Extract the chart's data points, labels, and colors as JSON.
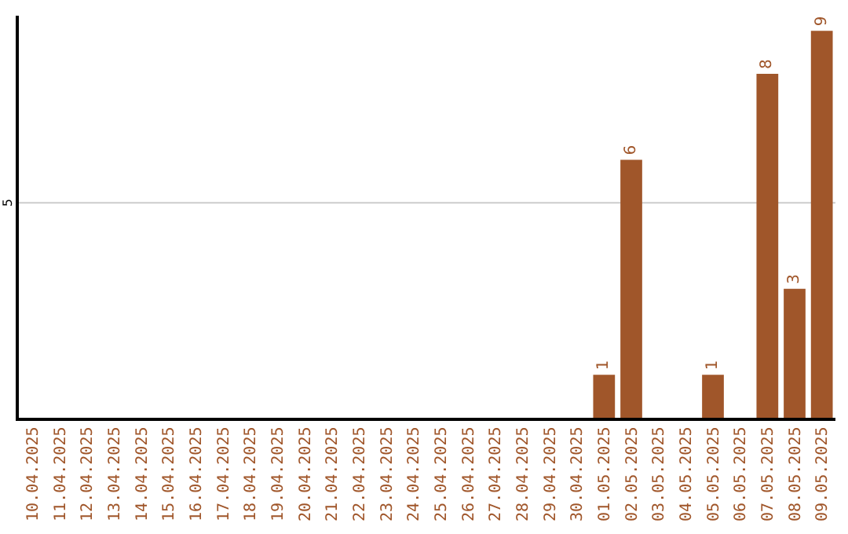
{
  "chart_data": {
    "type": "bar",
    "ylim": [
      0,
      9.35
    ],
    "legend": false,
    "categories": [
      "10.04.2025",
      "11.04.2025",
      "12.04.2025",
      "13.04.2025",
      "14.04.2025",
      "15.04.2025",
      "16.04.2025",
      "17.04.2025",
      "18.04.2025",
      "19.04.2025",
      "20.04.2025",
      "21.04.2025",
      "22.04.2025",
      "23.04.2025",
      "24.04.2025",
      "25.04.2025",
      "26.04.2025",
      "27.04.2025",
      "28.04.2025",
      "29.04.2025",
      "30.04.2025",
      "01.05.2025",
      "02.05.2025",
      "03.05.2025",
      "04.05.2025",
      "05.05.2025",
      "06.05.2025",
      "07.05.2025",
      "08.05.2025",
      "09.05.2025"
    ],
    "values": [
      null,
      null,
      null,
      null,
      null,
      null,
      null,
      null,
      null,
      null,
      null,
      null,
      null,
      null,
      null,
      null,
      null,
      null,
      null,
      null,
      null,
      1,
      6,
      null,
      null,
      1,
      null,
      8,
      3,
      9
    ],
    "data_labels": true,
    "color": "#a0562a",
    "ref_lines": [
      {
        "axis": "y",
        "value": 5,
        "label": "5",
        "color": "#cccccc"
      }
    ]
  }
}
